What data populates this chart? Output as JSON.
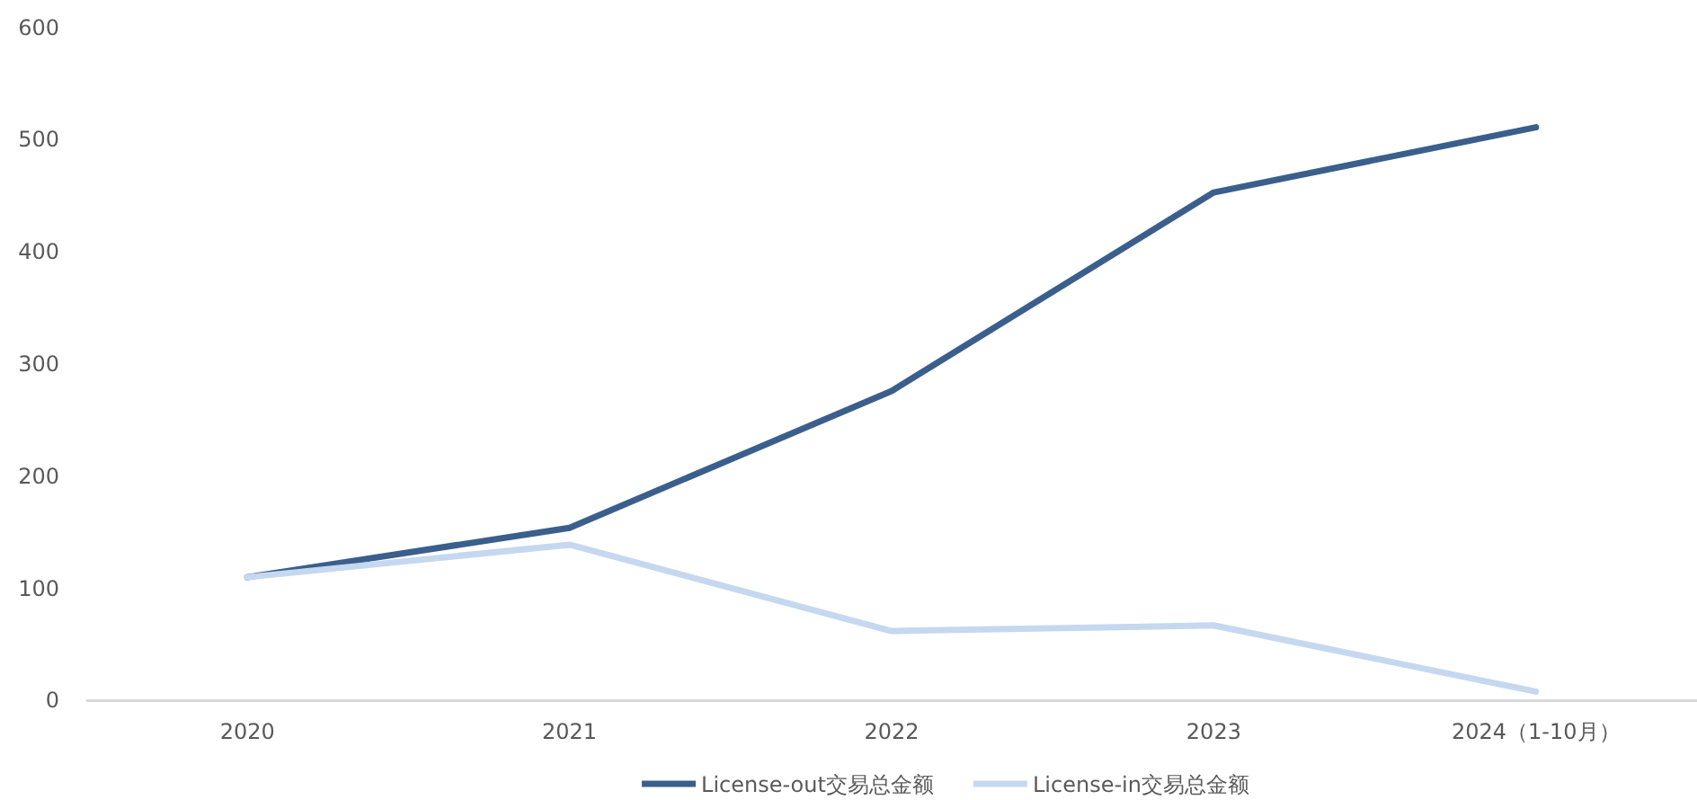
{
  "chart_data": {
    "type": "line",
    "categories": [
      "2020",
      "2021",
      "2022",
      "2023",
      "2024（1-10月）"
    ],
    "series": [
      {
        "name": "License-out交易总金额",
        "color": "#3b5f8c",
        "values": [
          110,
          154,
          276,
          453,
          511
        ]
      },
      {
        "name": "License-in交易总金额",
        "color": "#c5d8f0",
        "values": [
          110,
          139,
          62,
          67,
          8
        ]
      }
    ],
    "ylim": [
      0,
      600
    ],
    "yticks": [
      0,
      100,
      200,
      300,
      400,
      500,
      600
    ],
    "legend": "bottom",
    "marker": "none",
    "line_style": "solid"
  }
}
